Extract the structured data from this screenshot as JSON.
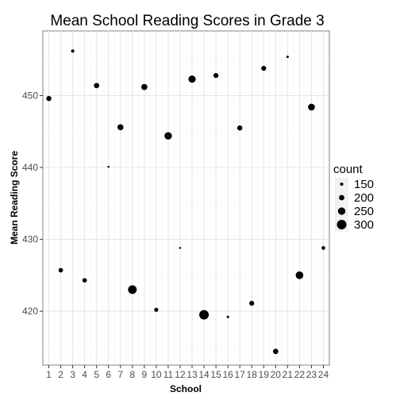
{
  "chart_data": {
    "type": "scatter",
    "title": "Mean School Reading Scores in Grade 3",
    "xlabel": "School",
    "ylabel": "Mean Reading Score",
    "x_ticks": [
      "1",
      "2",
      "3",
      "4",
      "5",
      "6",
      "7",
      "8",
      "9",
      "10",
      "11",
      "12",
      "13",
      "14",
      "15",
      "16",
      "17",
      "18",
      "19",
      "20",
      "21",
      "22",
      "23",
      "24"
    ],
    "y_ticks": [
      420,
      430,
      440,
      450
    ],
    "xlim": [
      0.5,
      24.5
    ],
    "ylim": [
      412.5,
      459.0
    ],
    "grid": true,
    "legend_position": "right",
    "size_legend": {
      "title": "count",
      "labels": [
        "150",
        "200",
        "250",
        "300"
      ],
      "values": [
        150,
        200,
        250,
        300
      ]
    },
    "points": [
      {
        "x": 1,
        "y": 449.6,
        "count": 195
      },
      {
        "x": 2,
        "y": 425.7,
        "count": 180
      },
      {
        "x": 3,
        "y": 456.2,
        "count": 150
      },
      {
        "x": 4,
        "y": 424.3,
        "count": 180
      },
      {
        "x": 5,
        "y": 451.4,
        "count": 200
      },
      {
        "x": 6,
        "y": 440.1,
        "count": 120
      },
      {
        "x": 7,
        "y": 445.6,
        "count": 215
      },
      {
        "x": 8,
        "y": 423.0,
        "count": 280
      },
      {
        "x": 9,
        "y": 451.2,
        "count": 220
      },
      {
        "x": 10,
        "y": 420.2,
        "count": 170
      },
      {
        "x": 11,
        "y": 444.4,
        "count": 250
      },
      {
        "x": 12,
        "y": 428.8,
        "count": 120
      },
      {
        "x": 13,
        "y": 452.3,
        "count": 245
      },
      {
        "x": 14,
        "y": 419.5,
        "count": 300
      },
      {
        "x": 15,
        "y": 452.8,
        "count": 190
      },
      {
        "x": 16,
        "y": 419.2,
        "count": 130
      },
      {
        "x": 17,
        "y": 445.5,
        "count": 195
      },
      {
        "x": 18,
        "y": 421.1,
        "count": 190
      },
      {
        "x": 19,
        "y": 453.8,
        "count": 190
      },
      {
        "x": 20,
        "y": 414.4,
        "count": 200
      },
      {
        "x": 21,
        "y": 455.4,
        "count": 130
      },
      {
        "x": 22,
        "y": 425.0,
        "count": 255
      },
      {
        "x": 23,
        "y": 448.4,
        "count": 235
      },
      {
        "x": 24,
        "y": 428.8,
        "count": 160
      }
    ]
  }
}
